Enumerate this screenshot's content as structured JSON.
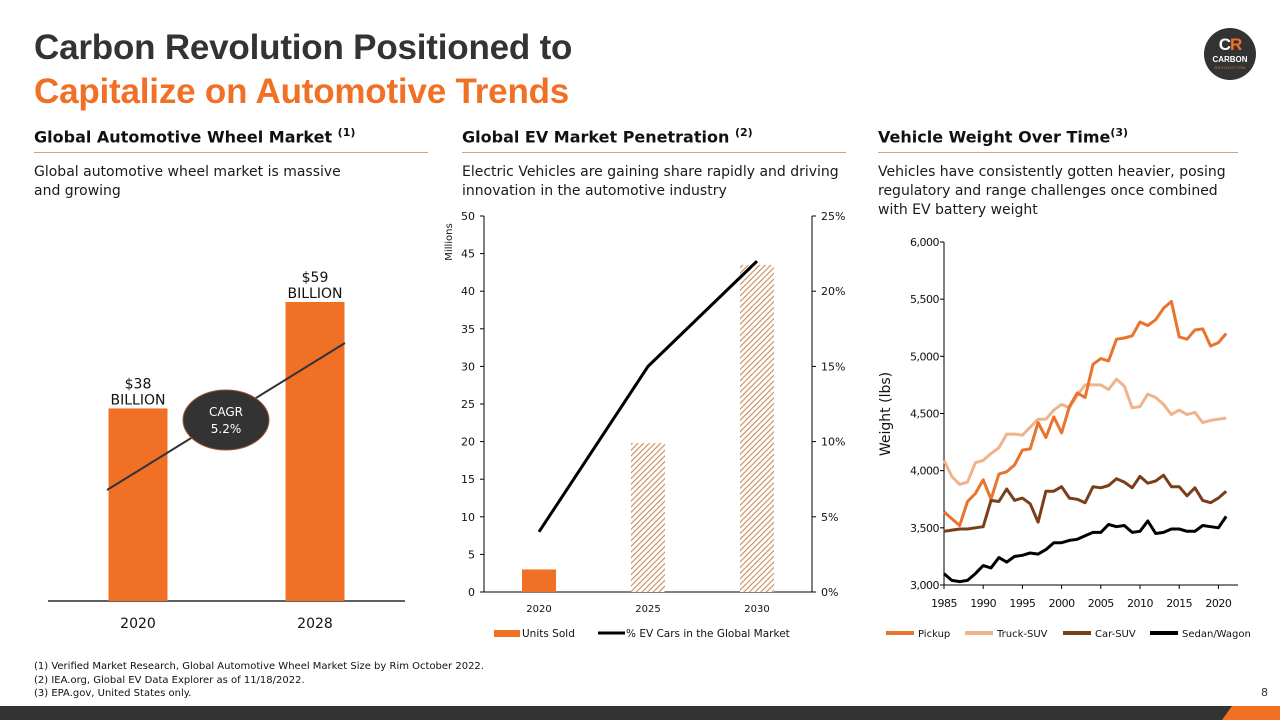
{
  "header": {
    "title_line1": "Carbon Revolution Positioned to",
    "title_line2": "Capitalize on Automotive Trends",
    "logo": {
      "mark_c": "C",
      "mark_r": "R",
      "name": "CARBON",
      "sub": "REVOLUTION"
    }
  },
  "colors": {
    "accent": "#f07125",
    "dark": "#333333",
    "pickup": "#e8742e",
    "truck_suv": "#f0b48c",
    "car_suv": "#7a3f1a",
    "sedan": "#000000"
  },
  "sections": [
    {
      "title": "Global Automotive Wheel Market",
      "note": "(1)",
      "desc": "Global automotive wheel market is massive and growing"
    },
    {
      "title": "Global EV Market Penetration",
      "note": "(2)",
      "desc": "Electric Vehicles are gaining share rapidly and driving innovation in the automotive industry"
    },
    {
      "title": "Vehicle Weight Over Time",
      "note": "(3)",
      "desc": "Vehicles have consistently gotten heavier, posing regulatory and range challenges once combined with EV battery weight"
    }
  ],
  "chart_data": [
    {
      "type": "bar",
      "title": "Global Automotive Wheel Market",
      "categories": [
        "2020",
        "2028"
      ],
      "values": [
        38,
        59
      ],
      "units": "USD billion",
      "data_labels": [
        [
          "$38",
          "BILLION"
        ],
        [
          "$59",
          "BILLION"
        ]
      ],
      "annotation": {
        "line1": "CAGR",
        "line2": "5.2%"
      },
      "ylim": [
        0,
        65
      ]
    },
    {
      "type": "bar",
      "title": "Global EV Market Penetration",
      "categories": [
        "2020",
        "2025",
        "2030"
      ],
      "series": [
        {
          "name": "Units Sold",
          "axis": "left",
          "values": [
            3.0,
            19.8,
            43.5
          ],
          "styles": [
            "solid",
            "hatched",
            "hatched"
          ]
        },
        {
          "name": "% EV Cars in the Global Market",
          "axis": "right",
          "type": "line",
          "values": [
            4,
            15,
            22
          ]
        }
      ],
      "ylabel": "Millions",
      "ylim": [
        0,
        50
      ],
      "yticks": [
        "0",
        "5",
        "10",
        "15",
        "20",
        "25",
        "30",
        "35",
        "40",
        "45",
        "50"
      ],
      "y2lim": [
        0,
        25
      ],
      "y2ticks": [
        "0%",
        "5%",
        "10%",
        "15%",
        "20%",
        "25%"
      ],
      "legend": "bottom"
    },
    {
      "type": "line",
      "title": "Vehicle Weight Over Time",
      "ylabel": "Weight (lbs)",
      "x": [
        1985,
        1986,
        1987,
        1988,
        1989,
        1990,
        1991,
        1992,
        1993,
        1994,
        1995,
        1996,
        1997,
        1998,
        1999,
        2000,
        2001,
        2002,
        2003,
        2004,
        2005,
        2006,
        2007,
        2008,
        2009,
        2010,
        2011,
        2012,
        2013,
        2014,
        2015,
        2016,
        2017,
        2018,
        2019,
        2020,
        2021
      ],
      "xlim": [
        1985,
        2022
      ],
      "xticks": [
        "1985",
        "1990",
        "1995",
        "2000",
        "2005",
        "2010",
        "2015",
        "2020"
      ],
      "ylim": [
        3000,
        6000
      ],
      "yticks": [
        "3,000",
        "3,500",
        "4,000",
        "4,500",
        "5,000",
        "5,500",
        "6,000"
      ],
      "series": [
        {
          "name": "Pickup",
          "values": [
            3640,
            3580,
            3520,
            3730,
            3800,
            3920,
            3750,
            3970,
            3990,
            4050,
            4180,
            4190,
            4420,
            4290,
            4470,
            4330,
            4560,
            4680,
            4640,
            4930,
            4980,
            4960,
            5150,
            5160,
            5180,
            5300,
            5270,
            5320,
            5420,
            5480,
            5170,
            5150,
            5230,
            5240,
            5090,
            5120,
            5200
          ]
        },
        {
          "name": "Truck-SUV",
          "values": [
            4090,
            3950,
            3880,
            3900,
            4070,
            4090,
            4150,
            4200,
            4320,
            4320,
            4310,
            4380,
            4450,
            4450,
            4530,
            4580,
            4550,
            4660,
            4750,
            4750,
            4750,
            4710,
            4800,
            4740,
            4550,
            4560,
            4670,
            4640,
            4580,
            4490,
            4530,
            4490,
            4510,
            4420,
            4440,
            4450,
            4460
          ]
        },
        {
          "name": "Car-SUV",
          "values": [
            3470,
            3480,
            3490,
            3490,
            3500,
            3510,
            3740,
            3730,
            3840,
            3740,
            3760,
            3710,
            3550,
            3820,
            3820,
            3860,
            3760,
            3750,
            3720,
            3860,
            3850,
            3870,
            3930,
            3900,
            3850,
            3950,
            3890,
            3910,
            3960,
            3860,
            3860,
            3780,
            3850,
            3740,
            3720,
            3760,
            3820
          ]
        },
        {
          "name": "Sedan/Wagon",
          "values": [
            3100,
            3040,
            3030,
            3040,
            3100,
            3170,
            3150,
            3240,
            3200,
            3250,
            3260,
            3280,
            3270,
            3310,
            3370,
            3370,
            3390,
            3400,
            3430,
            3460,
            3460,
            3530,
            3510,
            3520,
            3460,
            3470,
            3560,
            3450,
            3460,
            3490,
            3490,
            3470,
            3470,
            3520,
            3510,
            3500,
            3600
          ]
        }
      ],
      "legend": "bottom"
    }
  ],
  "footnotes": [
    "(1) Verified Market Research, Global Automotive Wheel Market Size by Rim  October 2022.",
    "(2) IEA.org, Global EV Data Explorer as of 11/18/2022.",
    "(3) EPA.gov, United States only."
  ],
  "page_number": "8"
}
